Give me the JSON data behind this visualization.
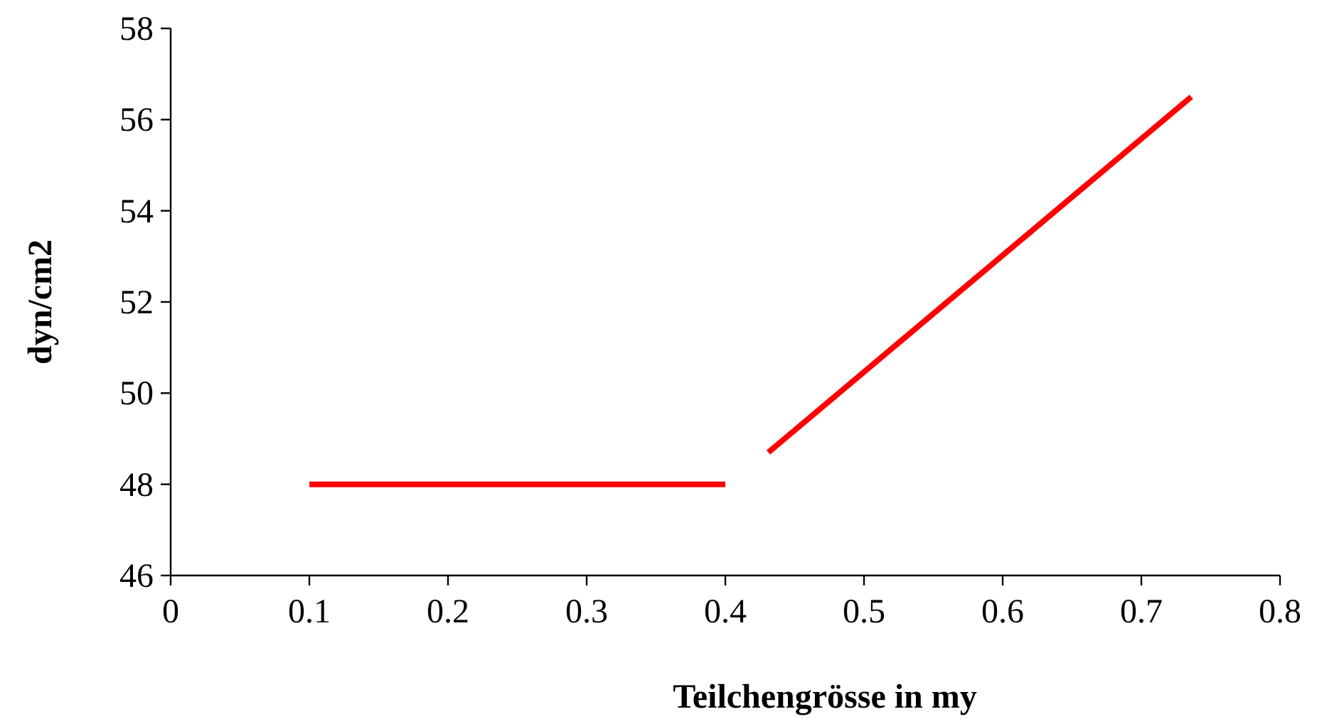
{
  "chart_data": {
    "type": "line",
    "xlabel": "Teilchengrösse in my",
    "ylabel": "dyn/cm2",
    "xlim": [
      0,
      0.8
    ],
    "xticks": [
      0,
      0.1,
      0.2,
      0.3,
      0.4,
      0.5,
      0.6,
      0.7,
      0.8
    ],
    "ylim": [
      46,
      58
    ],
    "yticks": [
      46,
      48,
      50,
      52,
      54,
      56,
      58
    ],
    "series": [
      {
        "color": "#ff0000",
        "x": [
          0.1,
          0.4
        ],
        "values": [
          48,
          48
        ]
      },
      {
        "color": "#ff0000",
        "x": [
          0.431,
          0.736
        ],
        "values": [
          48.7,
          56.5
        ]
      }
    ],
    "grid": false,
    "marker": "none",
    "line_style": "solid"
  }
}
